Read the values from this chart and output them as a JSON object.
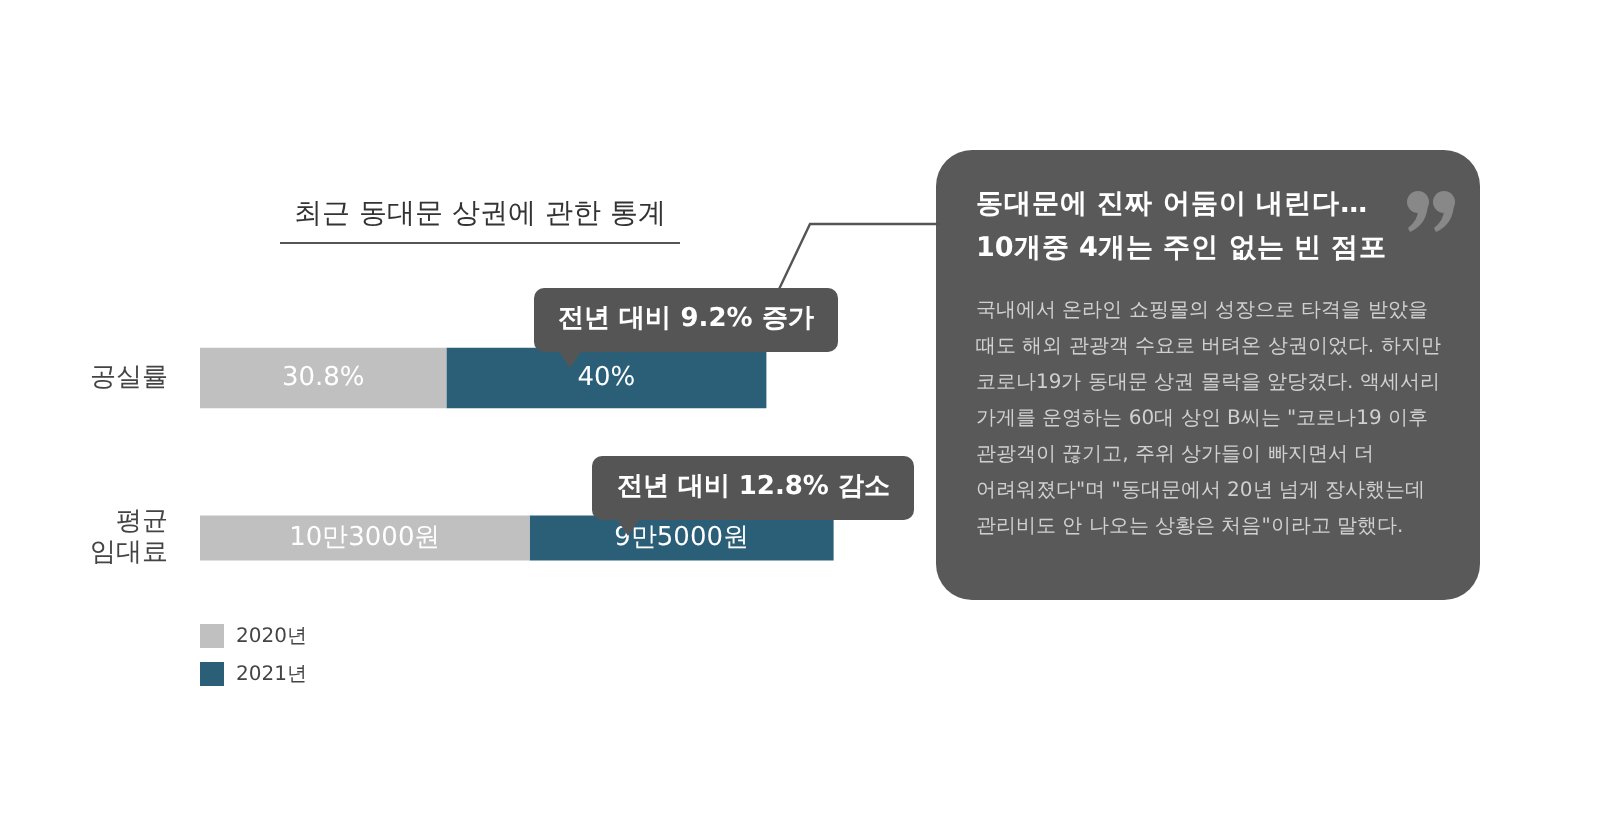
{
  "chart_data": [
    {
      "type": "bar",
      "orientation": "horizontal",
      "stacked": true,
      "title": "최근 동대문 상권에 관한 통계",
      "categories": [
        "공실률"
      ],
      "series": [
        {
          "color": "#c0c0c0",
          "values": [
            30.8
          ],
          "value_labels": [
            "30.8%"
          ]
        },
        {
          "color": "#2b5f78",
          "values": [
            40
          ],
          "value_labels": [
            "40%"
          ]
        }
      ],
      "annotations": [
        "전년 대비 9.2% 증가"
      ],
      "tick_labels": "y"
    },
    {
      "type": "bar",
      "orientation": "horizontal",
      "stacked": true,
      "categories": [
        "평균 임대료"
      ],
      "series": [
        {
          "name": "2020년",
          "color": "#c0c0c0",
          "values": [
            10.3
          ],
          "value_labels": [
            "10만3000원"
          ]
        },
        {
          "name": "2021년",
          "color": "#2b5f78",
          "values": [
            9.5
          ],
          "value_labels": [
            "9만5000원"
          ]
        }
      ],
      "annotations": [
        "전년 대비 12.8% 감소"
      ],
      "tick_labels": "y",
      "legend": "bottom left"
    },
    {
      "type": "other",
      "title": "동대문에 진짜 어둠이 내린다…\n10개중 4개는 주인 없는 빈 점포",
      "annotations": [
        "국내에서 온라인 쇼핑몰의 성장으로 타격을 받았을 때도 해외 관광객 수요로 버텨온 상권이었다. 하지만 코로나19가 동대문 상권 몰락을 앞당겼다. 액세서리 가게를 운영하는 60대 상인 B씨는 \"코로나19 이후 관광객이 끊기고, 주위 상가들이 빠지면서 더 어려워졌다\"며 \"동대문에서 20년 넘게 장사했는데 관리비도 안 나오는 상황은 처음\"이라고 말했다."
      ]
    }
  ]
}
